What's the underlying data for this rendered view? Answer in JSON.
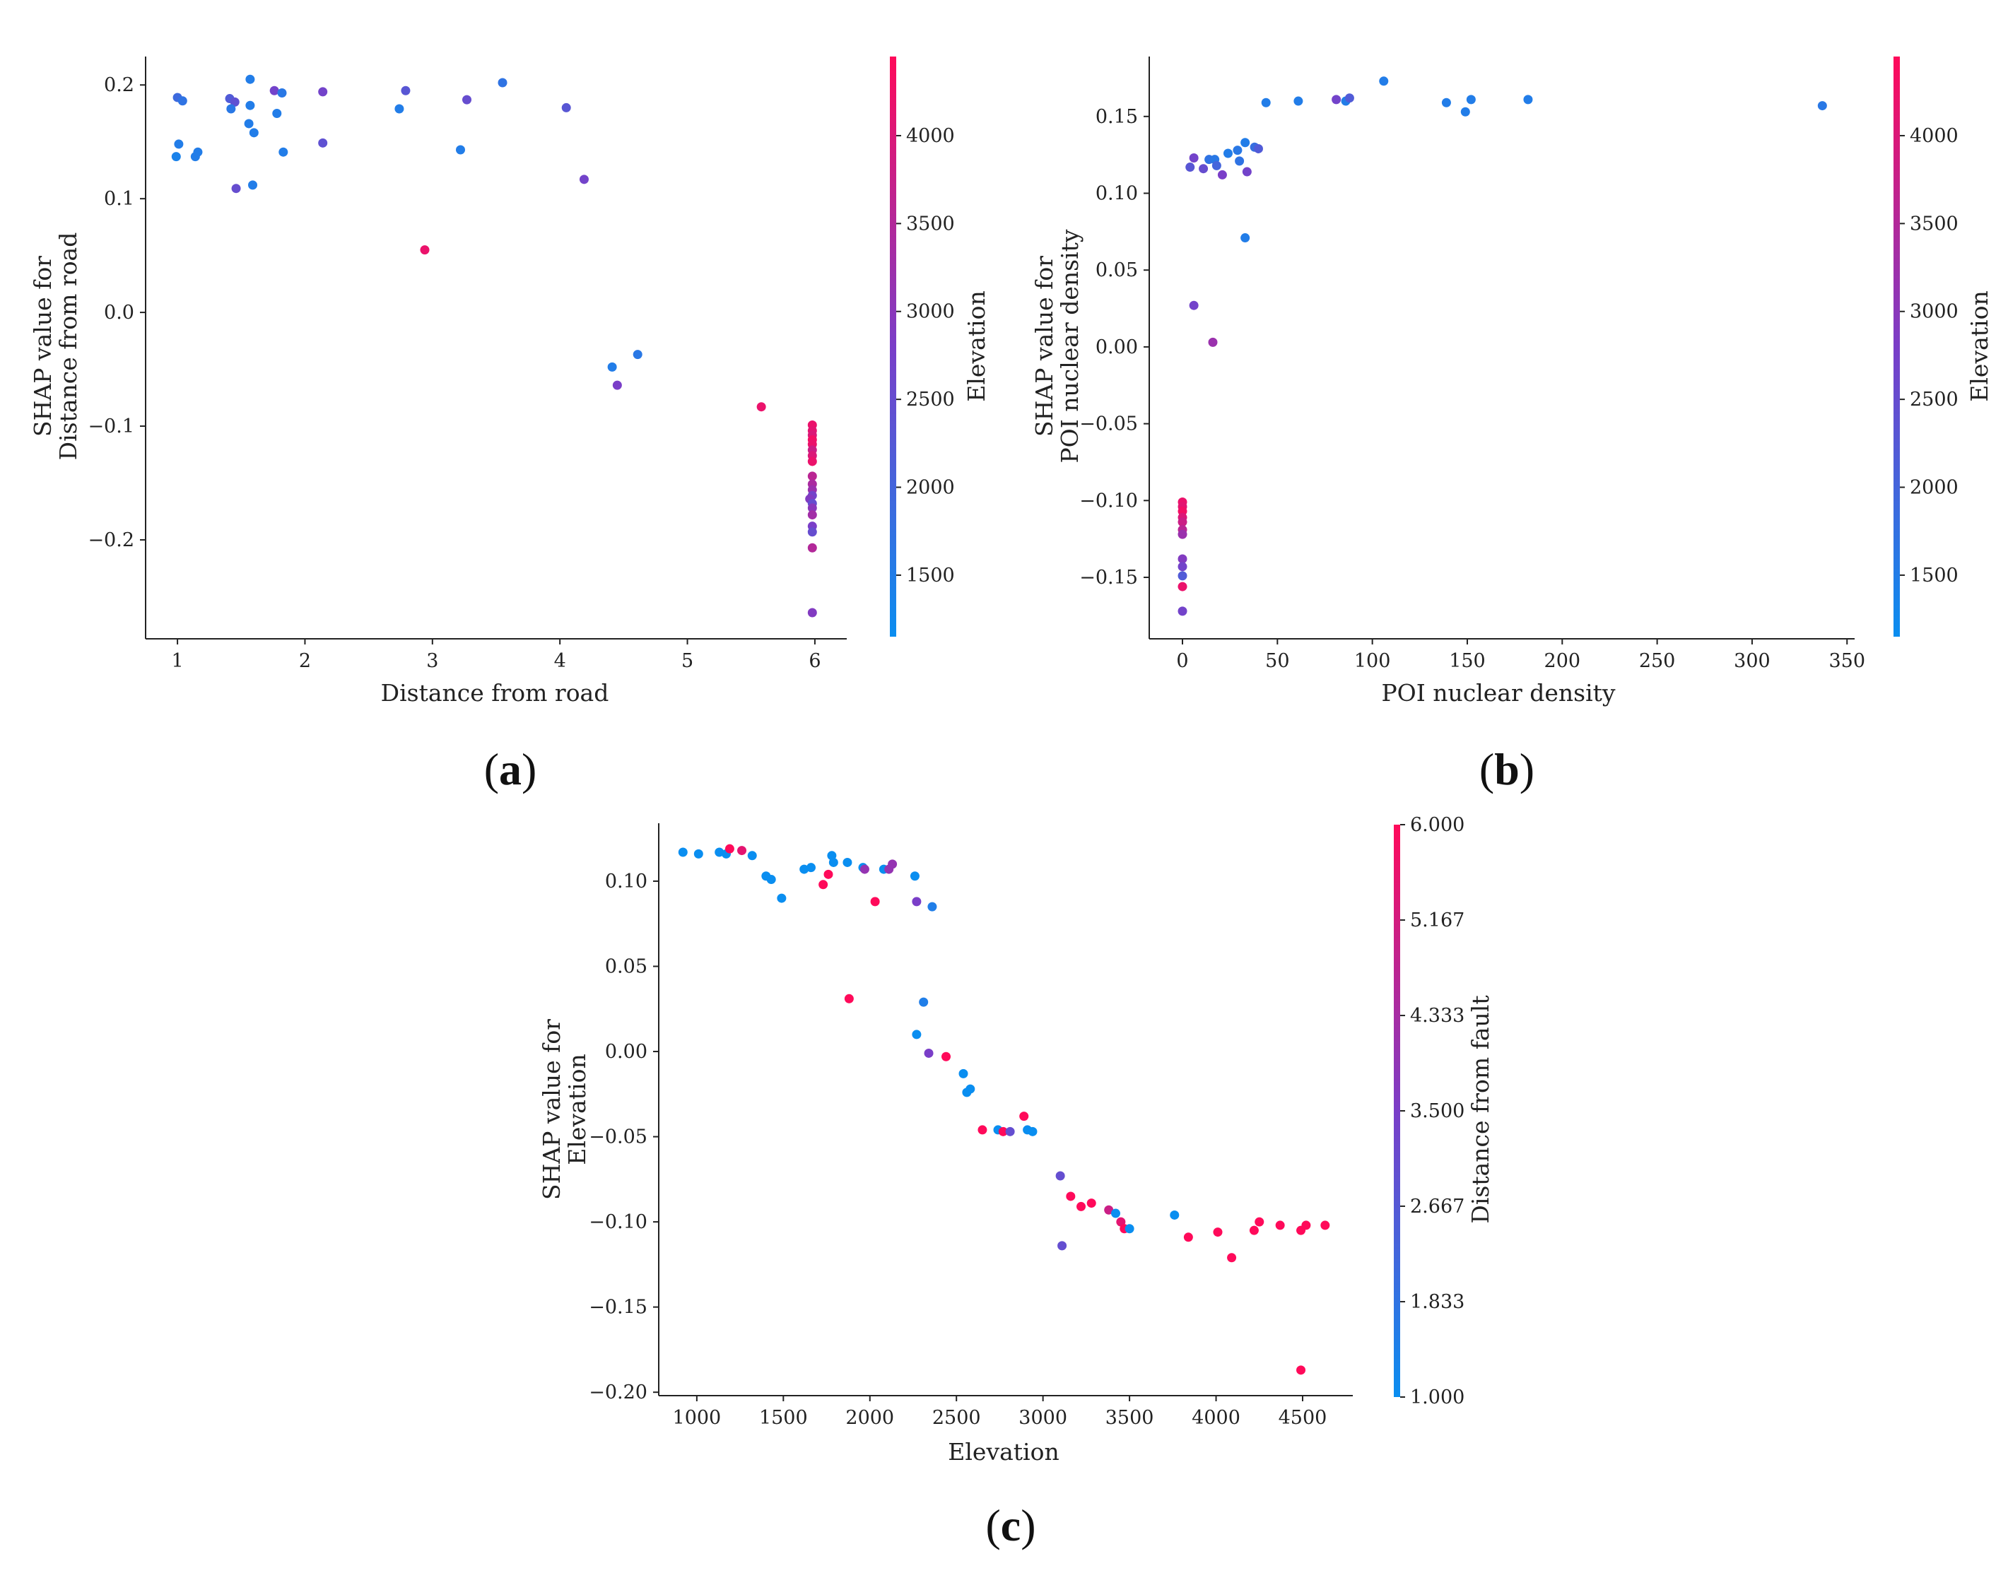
{
  "colors": {
    "low": "#0a8ef0",
    "high": "#ff0a5a",
    "axis": "#222222"
  },
  "chart_data": [
    {
      "id": "a",
      "type": "scatter",
      "panel_label": "a",
      "xlabel": "Distance from road",
      "ylabel_line1": "SHAP value for",
      "ylabel_line2": "Distance from road",
      "xlim": [
        0.75,
        6.25
      ],
      "ylim": [
        -0.287,
        0.225
      ],
      "xticks": [
        1,
        2,
        3,
        4,
        5,
        6
      ],
      "xtick_labels": [
        "1",
        "2",
        "3",
        "4",
        "5",
        "6"
      ],
      "yticks": [
        0.2,
        0.1,
        0.0,
        -0.1,
        -0.2
      ],
      "ytick_labels": [
        "0.2",
        "0.1",
        "0.0",
        "−0.1",
        "−0.2"
      ],
      "colorbar": {
        "label": "Elevation",
        "range": [
          1150,
          4450
        ],
        "ticks": [
          1500,
          2000,
          2500,
          3000,
          3500,
          4000
        ],
        "tick_labels": [
          "1500",
          "2000",
          "2500",
          "3000",
          "3500",
          "4000"
        ]
      },
      "points": [
        [
          1.0,
          0.189,
          1900
        ],
        [
          1.04,
          0.186,
          1700
        ],
        [
          1.01,
          0.148,
          1500
        ],
        [
          0.99,
          0.137,
          1400
        ],
        [
          1.14,
          0.137,
          1500
        ],
        [
          1.16,
          0.141,
          1500
        ],
        [
          1.41,
          0.188,
          2200
        ],
        [
          1.45,
          0.185,
          2400
        ],
        [
          1.42,
          0.179,
          1600
        ],
        [
          1.46,
          0.109,
          2500
        ],
        [
          1.57,
          0.205,
          1500
        ],
        [
          1.57,
          0.182,
          1500
        ],
        [
          1.56,
          0.166,
          1500
        ],
        [
          1.6,
          0.158,
          1500
        ],
        [
          1.59,
          0.112,
          1500
        ],
        [
          1.76,
          0.195,
          2700
        ],
        [
          1.78,
          0.175,
          1500
        ],
        [
          1.82,
          0.193,
          1600
        ],
        [
          1.83,
          0.141,
          1500
        ],
        [
          2.14,
          0.194,
          2700
        ],
        [
          2.14,
          0.149,
          2400
        ],
        [
          2.79,
          0.195,
          2300
        ],
        [
          2.74,
          0.179,
          1500
        ],
        [
          3.27,
          0.187,
          2500
        ],
        [
          3.22,
          0.143,
          1500
        ],
        [
          3.55,
          0.202,
          1700
        ],
        [
          4.05,
          0.18,
          2300
        ],
        [
          4.19,
          0.117,
          2700
        ],
        [
          2.94,
          0.055,
          4200
        ],
        [
          4.41,
          -0.048,
          1500
        ],
        [
          4.61,
          -0.037,
          1600
        ],
        [
          4.45,
          -0.064,
          2800
        ],
        [
          5.58,
          -0.083,
          4200
        ],
        [
          5.98,
          -0.099,
          4200
        ],
        [
          5.98,
          -0.104,
          4100
        ],
        [
          5.98,
          -0.108,
          4000
        ],
        [
          5.98,
          -0.112,
          4300
        ],
        [
          5.98,
          -0.116,
          4200
        ],
        [
          5.98,
          -0.121,
          3800
        ],
        [
          5.98,
          -0.126,
          4000
        ],
        [
          5.98,
          -0.131,
          4200
        ],
        [
          5.98,
          -0.144,
          3600
        ],
        [
          5.98,
          -0.151,
          3400
        ],
        [
          5.98,
          -0.156,
          3200
        ],
        [
          5.98,
          -0.161,
          2700
        ],
        [
          5.96,
          -0.164,
          2900
        ],
        [
          5.98,
          -0.168,
          2500
        ],
        [
          5.98,
          -0.172,
          3000
        ],
        [
          5.98,
          -0.178,
          3300
        ],
        [
          5.98,
          -0.188,
          2800
        ],
        [
          5.98,
          -0.193,
          2500
        ],
        [
          5.98,
          -0.207,
          3500
        ],
        [
          5.98,
          -0.264,
          2900
        ]
      ]
    },
    {
      "id": "b",
      "type": "scatter",
      "panel_label": "b",
      "xlabel": "POI nuclear density",
      "ylabel_line1": "SHAP value for",
      "ylabel_line2": "POI nuclear density",
      "xlim": [
        -17.5,
        354
      ],
      "ylim": [
        -0.19,
        0.189
      ],
      "xticks": [
        0,
        50,
        100,
        150,
        200,
        250,
        300,
        350
      ],
      "xtick_labels": [
        "0",
        "50",
        "100",
        "150",
        "200",
        "250",
        "300",
        "350"
      ],
      "yticks": [
        0.15,
        0.1,
        0.05,
        0.0,
        -0.05,
        -0.1,
        -0.15
      ],
      "ytick_labels": [
        "0.15",
        "0.10",
        "0.05",
        "0.00",
        "−0.05",
        "−0.10",
        "−0.15"
      ],
      "colorbar": {
        "label": "Elevation",
        "range": [
          1150,
          4450
        ],
        "ticks": [
          1500,
          2000,
          2500,
          3000,
          3500,
          4000
        ],
        "tick_labels": [
          "1500",
          "2000",
          "2500",
          "3000",
          "3500",
          "4000"
        ]
      },
      "points": [
        [
          4,
          0.117,
          2300
        ],
        [
          6,
          0.123,
          2700
        ],
        [
          11,
          0.116,
          2500
        ],
        [
          14,
          0.122,
          1700
        ],
        [
          17,
          0.122,
          1600
        ],
        [
          18,
          0.118,
          2000
        ],
        [
          21,
          0.112,
          2800
        ],
        [
          24,
          0.126,
          1500
        ],
        [
          29,
          0.128,
          1600
        ],
        [
          30,
          0.121,
          1700
        ],
        [
          33,
          0.133,
          1500
        ],
        [
          34,
          0.114,
          2700
        ],
        [
          38,
          0.13,
          1800
        ],
        [
          40,
          0.129,
          2200
        ],
        [
          44,
          0.159,
          1500
        ],
        [
          61,
          0.16,
          1500
        ],
        [
          81,
          0.161,
          2700
        ],
        [
          86,
          0.16,
          1500
        ],
        [
          88,
          0.162,
          2200
        ],
        [
          106,
          0.173,
          1500
        ],
        [
          139,
          0.159,
          1500
        ],
        [
          149,
          0.153,
          1500
        ],
        [
          152,
          0.161,
          1500
        ],
        [
          182,
          0.161,
          1500
        ],
        [
          337,
          0.157,
          1600
        ],
        [
          33,
          0.071,
          1500
        ],
        [
          6,
          0.027,
          2700
        ],
        [
          16,
          0.003,
          3200
        ],
        [
          0,
          -0.101,
          4200
        ],
        [
          0,
          -0.104,
          4100
        ],
        [
          0,
          -0.107,
          4300
        ],
        [
          0,
          -0.111,
          4000
        ],
        [
          0,
          -0.114,
          3800
        ],
        [
          0,
          -0.119,
          3600
        ],
        [
          0,
          -0.122,
          3200
        ],
        [
          0,
          -0.138,
          2900
        ],
        [
          0,
          -0.143,
          2700
        ],
        [
          0,
          -0.149,
          2200
        ],
        [
          0,
          -0.156,
          4200
        ],
        [
          0,
          -0.172,
          2700
        ]
      ]
    },
    {
      "id": "c",
      "type": "scatter",
      "panel_label": "c",
      "xlabel": "Elevation",
      "ylabel_line1": "SHAP value for",
      "ylabel_line2": "Elevation",
      "xlim": [
        780,
        4790
      ],
      "ylim": [
        -0.202,
        0.134
      ],
      "xticks": [
        1000,
        1500,
        2000,
        2500,
        3000,
        3500,
        4000,
        4500
      ],
      "xtick_labels": [
        "1000",
        "1500",
        "2000",
        "2500",
        "3000",
        "3500",
        "4000",
        "4500"
      ],
      "yticks": [
        0.1,
        0.05,
        0.0,
        -0.05,
        -0.1,
        -0.15,
        -0.2
      ],
      "ytick_labels": [
        "0.10",
        "0.05",
        "0.00",
        "−0.05",
        "−0.10",
        "−0.15",
        "−0.20"
      ],
      "colorbar": {
        "label": "Distance from fault",
        "range": [
          1.0,
          6.0
        ],
        "ticks": [
          1.0,
          1.833,
          2.667,
          3.5,
          4.333,
          5.167,
          6.0
        ],
        "tick_labels": [
          "1.000",
          "1.833",
          "2.667",
          "3.500",
          "4.333",
          "5.167",
          "6.000"
        ]
      },
      "points": [
        [
          920,
          0.117,
          1.0
        ],
        [
          1010,
          0.116,
          1.0
        ],
        [
          1130,
          0.117,
          1.0
        ],
        [
          1170,
          0.116,
          1.0
        ],
        [
          1190,
          0.119,
          6.0
        ],
        [
          1260,
          0.118,
          5.5
        ],
        [
          1320,
          0.115,
          1.0
        ],
        [
          1400,
          0.103,
          1.0
        ],
        [
          1430,
          0.101,
          1.0
        ],
        [
          1490,
          0.09,
          1.0
        ],
        [
          1620,
          0.107,
          1.0
        ],
        [
          1660,
          0.108,
          1.0
        ],
        [
          1730,
          0.098,
          6.0
        ],
        [
          1760,
          0.104,
          6.0
        ],
        [
          1780,
          0.115,
          1.0
        ],
        [
          1790,
          0.111,
          1.0
        ],
        [
          1870,
          0.111,
          1.0
        ],
        [
          1960,
          0.108,
          1.0
        ],
        [
          1970,
          0.107,
          4.0
        ],
        [
          2030,
          0.088,
          6.0
        ],
        [
          2080,
          0.107,
          1.0
        ],
        [
          2110,
          0.107,
          4.0
        ],
        [
          2130,
          0.11,
          4.0
        ],
        [
          2260,
          0.103,
          1.0
        ],
        [
          2270,
          0.088,
          3.5
        ],
        [
          2360,
          0.085,
          1.5
        ],
        [
          1880,
          0.031,
          6.0
        ],
        [
          2310,
          0.029,
          1.5
        ],
        [
          2270,
          0.01,
          1.0
        ],
        [
          2340,
          -0.001,
          3.5
        ],
        [
          2440,
          -0.003,
          6.0
        ],
        [
          2540,
          -0.013,
          1.0
        ],
        [
          2560,
          -0.024,
          1.0
        ],
        [
          2580,
          -0.022,
          1.0
        ],
        [
          2650,
          -0.046,
          6.0
        ],
        [
          2740,
          -0.046,
          1.0
        ],
        [
          2770,
          -0.047,
          6.0
        ],
        [
          2810,
          -0.047,
          3.0
        ],
        [
          2890,
          -0.038,
          6.0
        ],
        [
          2910,
          -0.046,
          1.0
        ],
        [
          2940,
          -0.047,
          1.0
        ],
        [
          3100,
          -0.073,
          3.0
        ],
        [
          3110,
          -0.114,
          3.0
        ],
        [
          3160,
          -0.085,
          6.0
        ],
        [
          3220,
          -0.091,
          6.0
        ],
        [
          3280,
          -0.089,
          6.0
        ],
        [
          3380,
          -0.093,
          5.0
        ],
        [
          3420,
          -0.095,
          1.0
        ],
        [
          3450,
          -0.1,
          5.5
        ],
        [
          3470,
          -0.104,
          6.0
        ],
        [
          3500,
          -0.104,
          1.0
        ],
        [
          3760,
          -0.096,
          1.0
        ],
        [
          3840,
          -0.109,
          6.0
        ],
        [
          4010,
          -0.106,
          6.0
        ],
        [
          4090,
          -0.121,
          6.0
        ],
        [
          4220,
          -0.105,
          6.0
        ],
        [
          4250,
          -0.1,
          6.0
        ],
        [
          4370,
          -0.102,
          6.0
        ],
        [
          4490,
          -0.105,
          6.0
        ],
        [
          4520,
          -0.102,
          6.0
        ],
        [
          4630,
          -0.102,
          6.0
        ],
        [
          4490,
          -0.187,
          6.0
        ]
      ]
    }
  ]
}
